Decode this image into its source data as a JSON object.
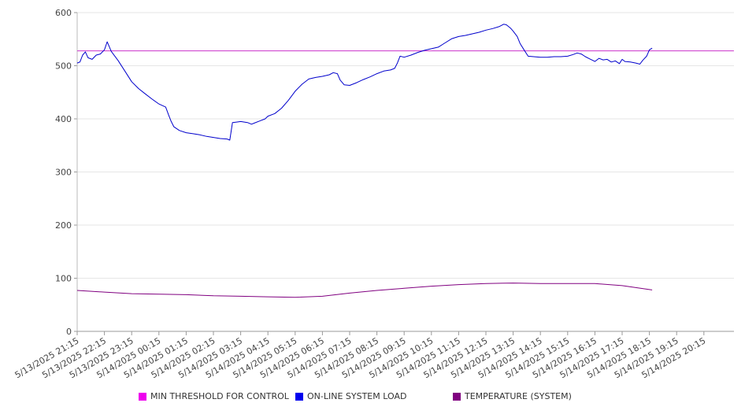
{
  "chart_data": {
    "type": "line",
    "title": "",
    "xlabel": "",
    "ylabel": "",
    "ylim": [
      0,
      600
    ],
    "yticks": [
      0,
      100,
      200,
      300,
      400,
      500,
      600
    ],
    "grid": true,
    "legend_position": "bottom",
    "x_tick_labels": [
      "5/13/2025 21:15",
      "5/13/2025 22:15",
      "5/13/2025 23:15",
      "5/14/2025 00:15",
      "5/14/2025 01:15",
      "5/14/2025 02:15",
      "5/14/2025 03:15",
      "5/14/2025 04:15",
      "5/14/2025 05:15",
      "5/14/2025 06:15",
      "5/14/2025 07:15",
      "5/14/2025 08:15",
      "5/14/2025 09:15",
      "5/14/2025 10:15",
      "5/14/2025 11:15",
      "5/14/2025 12:15",
      "5/14/2025 13:15",
      "5/14/2025 14:15",
      "5/14/2025 15:15",
      "5/14/2025 16:15",
      "5/14/2025 17:15",
      "5/14/2025 18:15",
      "5/14/2025 19:15",
      "5/14/2025 20:15"
    ],
    "series": [
      {
        "name": "MIN THRESHOLD FOR CONTROL",
        "color": "#ee00ee",
        "line_color": "#cc33cc",
        "points": [
          [
            0,
            528
          ],
          [
            24.1,
            528
          ]
        ]
      },
      {
        "name": "ON-LINE SYSTEM LOAD",
        "color": "#0000ee",
        "line_color": "#0000cc",
        "points": [
          [
            0,
            505
          ],
          [
            0.1,
            507
          ],
          [
            0.2,
            520
          ],
          [
            0.3,
            526
          ],
          [
            0.4,
            515
          ],
          [
            0.55,
            512
          ],
          [
            0.7,
            520
          ],
          [
            0.85,
            522
          ],
          [
            1.0,
            530
          ],
          [
            1.1,
            545
          ],
          [
            1.25,
            527
          ],
          [
            1.5,
            510
          ],
          [
            1.75,
            490
          ],
          [
            2.0,
            470
          ],
          [
            2.25,
            457
          ],
          [
            2.5,
            447
          ],
          [
            2.75,
            437
          ],
          [
            3.0,
            428
          ],
          [
            3.25,
            422
          ],
          [
            3.35,
            408
          ],
          [
            3.45,
            395
          ],
          [
            3.55,
            385
          ],
          [
            3.75,
            378
          ],
          [
            4.0,
            374
          ],
          [
            4.25,
            372
          ],
          [
            4.5,
            370
          ],
          [
            4.75,
            367
          ],
          [
            5.0,
            365
          ],
          [
            5.25,
            363
          ],
          [
            5.5,
            362
          ],
          [
            5.6,
            360
          ],
          [
            5.7,
            393
          ],
          [
            5.85,
            394
          ],
          [
            6.0,
            395
          ],
          [
            6.25,
            393
          ],
          [
            6.4,
            390
          ],
          [
            6.5,
            392
          ],
          [
            6.7,
            396
          ],
          [
            6.9,
            400
          ],
          [
            7.0,
            405
          ],
          [
            7.25,
            410
          ],
          [
            7.5,
            420
          ],
          [
            7.75,
            435
          ],
          [
            8.0,
            452
          ],
          [
            8.25,
            465
          ],
          [
            8.5,
            475
          ],
          [
            8.75,
            478
          ],
          [
            9.0,
            480
          ],
          [
            9.25,
            483
          ],
          [
            9.4,
            487
          ],
          [
            9.55,
            485
          ],
          [
            9.65,
            473
          ],
          [
            9.8,
            464
          ],
          [
            10.0,
            463
          ],
          [
            10.25,
            468
          ],
          [
            10.5,
            474
          ],
          [
            10.75,
            479
          ],
          [
            11.0,
            485
          ],
          [
            11.25,
            490
          ],
          [
            11.5,
            492
          ],
          [
            11.65,
            495
          ],
          [
            11.75,
            505
          ],
          [
            11.85,
            518
          ],
          [
            12.0,
            516
          ],
          [
            12.25,
            520
          ],
          [
            12.5,
            525
          ],
          [
            12.75,
            529
          ],
          [
            13.0,
            532
          ],
          [
            13.25,
            535
          ],
          [
            13.5,
            543
          ],
          [
            13.75,
            551
          ],
          [
            14.0,
            555
          ],
          [
            14.25,
            557
          ],
          [
            14.5,
            560
          ],
          [
            14.75,
            563
          ],
          [
            15.0,
            567
          ],
          [
            15.25,
            570
          ],
          [
            15.5,
            574
          ],
          [
            15.65,
            578
          ],
          [
            15.75,
            577
          ],
          [
            15.9,
            571
          ],
          [
            16.0,
            565
          ],
          [
            16.15,
            555
          ],
          [
            16.25,
            542
          ],
          [
            16.4,
            530
          ],
          [
            16.55,
            518
          ],
          [
            16.75,
            517
          ],
          [
            17.0,
            516
          ],
          [
            17.25,
            516
          ],
          [
            17.5,
            517
          ],
          [
            17.75,
            517
          ],
          [
            18.0,
            518
          ],
          [
            18.2,
            521
          ],
          [
            18.35,
            524
          ],
          [
            18.5,
            522
          ],
          [
            18.65,
            517
          ],
          [
            18.8,
            513
          ],
          [
            19.0,
            508
          ],
          [
            19.15,
            514
          ],
          [
            19.3,
            511
          ],
          [
            19.45,
            512
          ],
          [
            19.6,
            507
          ],
          [
            19.75,
            509
          ],
          [
            19.9,
            504
          ],
          [
            20.0,
            512
          ],
          [
            20.1,
            508
          ],
          [
            20.3,
            507
          ],
          [
            20.5,
            505
          ],
          [
            20.65,
            503
          ],
          [
            20.75,
            510
          ],
          [
            20.9,
            518
          ],
          [
            21.0,
            530
          ],
          [
            21.1,
            533
          ]
        ]
      },
      {
        "name": "TEMPERATURE (SYSTEM)",
        "color": "#800080",
        "line_color": "#800080",
        "points": [
          [
            0,
            77
          ],
          [
            1,
            74
          ],
          [
            2,
            71
          ],
          [
            3,
            70
          ],
          [
            4,
            69
          ],
          [
            5,
            67
          ],
          [
            6,
            66
          ],
          [
            7,
            65
          ],
          [
            8,
            64
          ],
          [
            9,
            66
          ],
          [
            10,
            72
          ],
          [
            11,
            77
          ],
          [
            12,
            81
          ],
          [
            13,
            85
          ],
          [
            14,
            88
          ],
          [
            15,
            90
          ],
          [
            16,
            91
          ],
          [
            17,
            90
          ],
          [
            18,
            90
          ],
          [
            19,
            90
          ],
          [
            20,
            86
          ],
          [
            21.1,
            78
          ]
        ]
      }
    ]
  }
}
